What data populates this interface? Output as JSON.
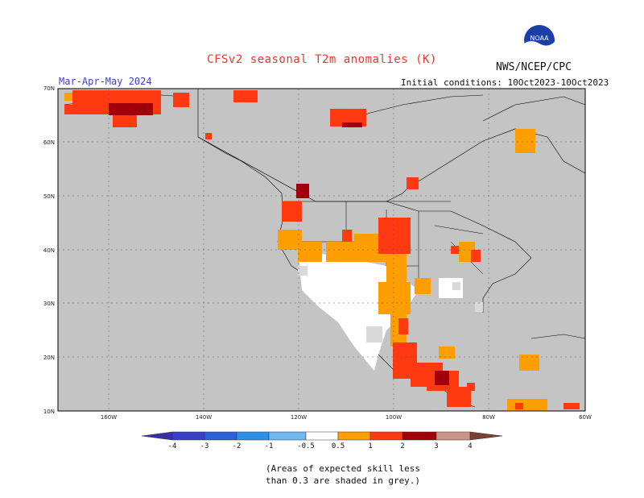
{
  "header": {
    "title": "CFSv2 seasonal T2m anomalies (K)",
    "period": "Mar-Apr-May 2024",
    "agency": "NWS/NCEP/CPC",
    "initial_conditions": "Initial conditions: 10Oct2023-10Oct2023",
    "logo_text": "NOAA"
  },
  "map": {
    "lat_labels": [
      "70N",
      "60N",
      "50N",
      "40N",
      "30N",
      "20N",
      "10N"
    ],
    "lon_labels": [
      "160W",
      "140W",
      "120W",
      "100W",
      "80W",
      "60W"
    ],
    "background_color": "#c4c4c4",
    "land_color": "#ffffff"
  },
  "legend": {
    "labels": [
      "-4",
      "-3",
      "-2",
      "-1",
      "-0.5",
      "0.5",
      "1",
      "2",
      "3",
      "4"
    ],
    "colors": [
      "#3a2ea8",
      "#2c4fd0",
      "#2d7fe0",
      "#4ea7ee",
      "#8ccdf4",
      "#ffffff",
      "#ff9e00",
      "#ff3a10",
      "#a0000a",
      "#c9958a",
      "#7a4030"
    ]
  },
  "footnote": {
    "line1": "(Areas of expected skill less",
    "line2": "than 0.3 are shaded in grey.)"
  }
}
